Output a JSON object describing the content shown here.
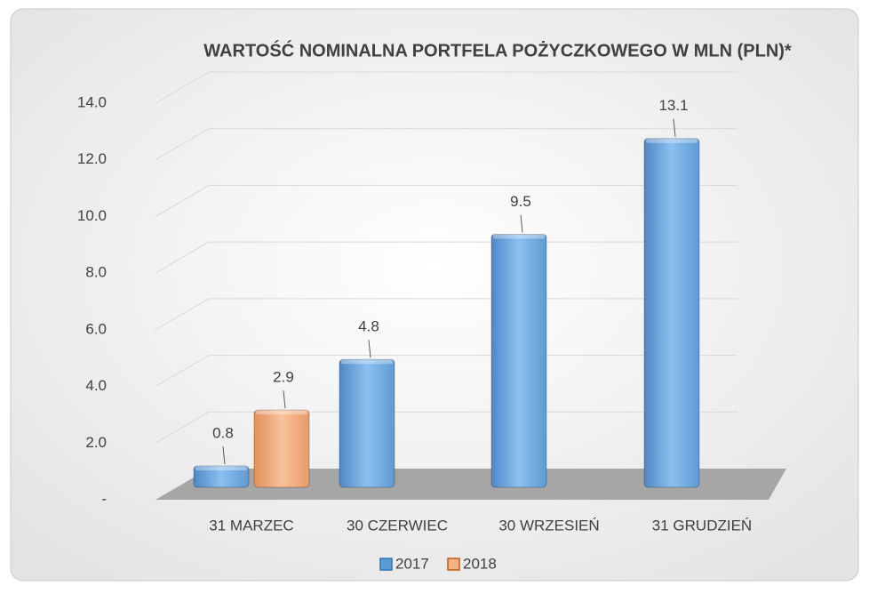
{
  "chart_data": {
    "type": "bar3d",
    "title": "WARTOŚĆ NOMINALNA PORTFELA POŻYCZKOWEGO W MLN (PLN)*",
    "categories": [
      "31 MARZEC",
      "30 CZERWIEC",
      "30 WRZESIEŃ",
      "31 GRUDZIEŃ"
    ],
    "series": [
      {
        "name": "2017",
        "color": "#5b9bd5",
        "values": [
          0.8,
          4.8,
          9.5,
          13.1
        ]
      },
      {
        "name": "2018",
        "color": "#f4b183",
        "values": [
          2.9,
          null,
          null,
          null
        ]
      }
    ],
    "ylim": [
      0,
      14
    ],
    "yticks": [
      {
        "value": 0,
        "label": "-"
      },
      {
        "value": 2,
        "label": "2.0"
      },
      {
        "value": 4,
        "label": "4.0"
      },
      {
        "value": 6,
        "label": "6.0"
      },
      {
        "value": 8,
        "label": "8.0"
      },
      {
        "value": 10,
        "label": "10.0"
      },
      {
        "value": 12,
        "label": "12.0"
      },
      {
        "value": 14,
        "label": "14.0"
      }
    ],
    "grid": true,
    "legend": "bottom"
  }
}
